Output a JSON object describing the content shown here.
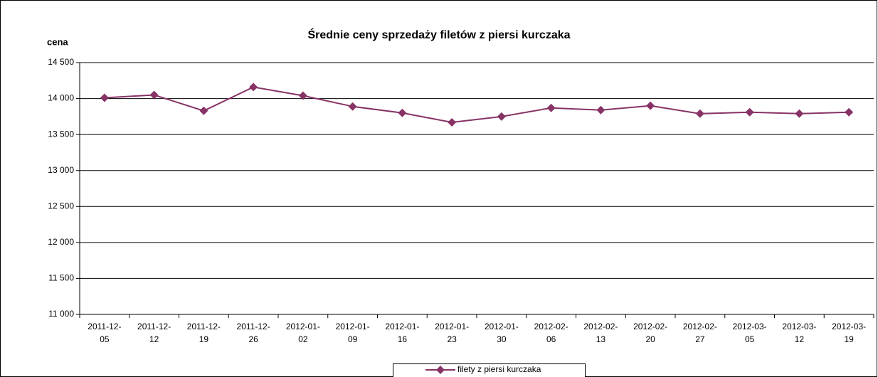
{
  "chart_data": {
    "type": "line",
    "title": "Średnie ceny sprzedaży filetów z piersi kurczaka",
    "y_label": "cena",
    "categories": [
      "2011-12-05",
      "2011-12-12",
      "2011-12-19",
      "2011-12-26",
      "2012-01-02",
      "2012-01-09",
      "2012-01-16",
      "2012-01-23",
      "2012-01-30",
      "2012-02-06",
      "2012-02-13",
      "2012-02-20",
      "2012-02-27",
      "2012-03-05",
      "2012-03-12",
      "2012-03-19"
    ],
    "series": [
      {
        "name": "filety z piersi kurczaka",
        "color": "#873366",
        "values": [
          14010,
          14050,
          13830,
          14160,
          14040,
          13890,
          13800,
          13670,
          13750,
          13870,
          13840,
          13900,
          13790,
          13810,
          13790,
          13810
        ]
      }
    ],
    "ylim": [
      11000,
      14500
    ],
    "yticks": [
      {
        "value": 11000,
        "label": "11 000"
      },
      {
        "value": 11500,
        "label": "11 500"
      },
      {
        "value": 12000,
        "label": "12 000"
      },
      {
        "value": 12500,
        "label": "12 500"
      },
      {
        "value": 13000,
        "label": "13 000"
      },
      {
        "value": 13500,
        "label": "13 500"
      },
      {
        "value": 14000,
        "label": "14 000"
      },
      {
        "value": 14500,
        "label": "14 500"
      }
    ],
    "grid": true,
    "legend": "bottom"
  }
}
